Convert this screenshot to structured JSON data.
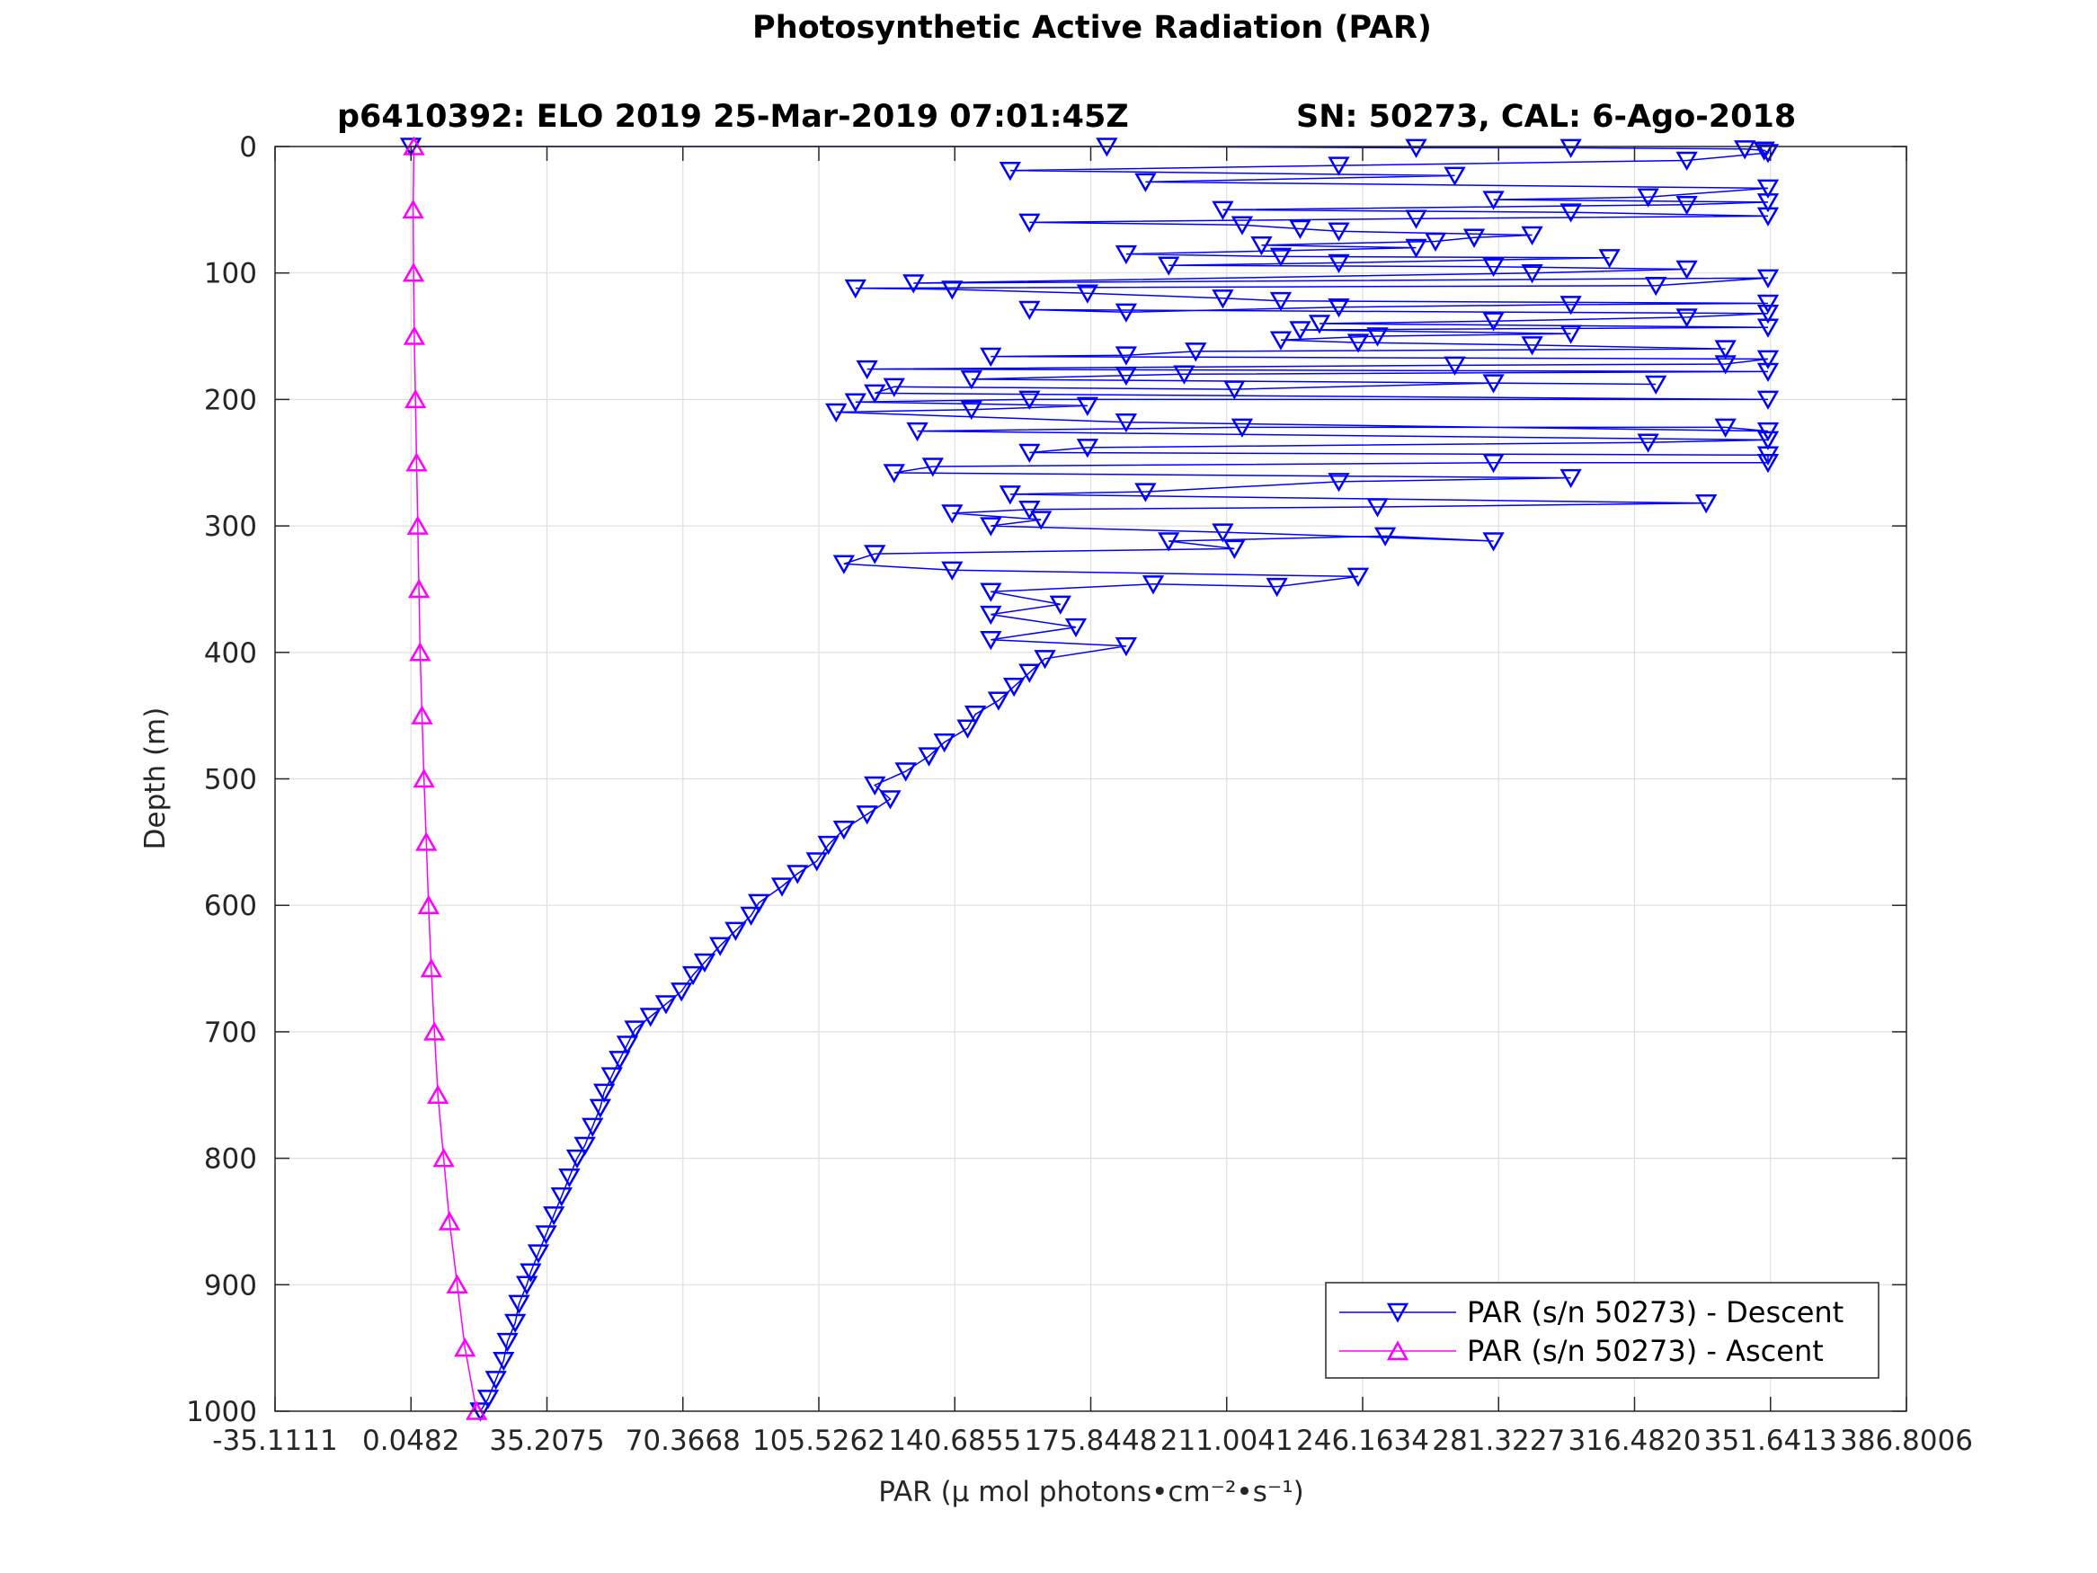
{
  "chart_data": {
    "type": "line",
    "title": "Photosynthetic Active Radiation (PAR)",
    "subtitle_left": "p6410392: ELO 2019 25-Mar-2019 07:01:45Z",
    "subtitle_right": "SN: 50273, CAL: 6-Ago-2018",
    "xlabel": "PAR (μ mol photons•cm⁻²•s⁻¹)",
    "ylabel": "Depth (m)",
    "xlim": [
      -35.1111,
      386.8006
    ],
    "ylim": [
      0,
      1000
    ],
    "y_reversed": true,
    "grid": true,
    "legend_position": "bottom-right",
    "x_ticks": [
      "-35.1111",
      "0.0482",
      "35.2075",
      "70.3668",
      "105.5262",
      "140.6855",
      "175.8448",
      "211.0041",
      "246.1634",
      "281.3227",
      "316.4820",
      "351.6413",
      "386.8006"
    ],
    "x_tick_values": [
      -35.1111,
      0.0482,
      35.2075,
      70.3668,
      105.5262,
      140.6855,
      175.8448,
      211.0041,
      246.1634,
      281.3227,
      316.482,
      351.6413,
      386.8006
    ],
    "y_ticks": [
      "0",
      "100",
      "200",
      "300",
      "400",
      "500",
      "600",
      "700",
      "800",
      "900",
      "1000"
    ],
    "y_tick_values": [
      0,
      100,
      200,
      300,
      400,
      500,
      600,
      700,
      800,
      900,
      1000
    ],
    "series": [
      {
        "name": "PAR (s/n 50273) - Descent",
        "color": "#0000ff",
        "marker": "triangle-down",
        "points": [
          [
            18,
            1000
          ],
          [
            20,
            990
          ],
          [
            22,
            975
          ],
          [
            24,
            960
          ],
          [
            25,
            945
          ],
          [
            27,
            930
          ],
          [
            28,
            915
          ],
          [
            30,
            900
          ],
          [
            31,
            890
          ],
          [
            33,
            875
          ],
          [
            35,
            860
          ],
          [
            37,
            845
          ],
          [
            39,
            830
          ],
          [
            41,
            815
          ],
          [
            43,
            800
          ],
          [
            45,
            790
          ],
          [
            47,
            775
          ],
          [
            49,
            760
          ],
          [
            50,
            748
          ],
          [
            52,
            735
          ],
          [
            54,
            722
          ],
          [
            56,
            710
          ],
          [
            58,
            698
          ],
          [
            62,
            688
          ],
          [
            66,
            678
          ],
          [
            70,
            668
          ],
          [
            73,
            655
          ],
          [
            76,
            645
          ],
          [
            80,
            632
          ],
          [
            84,
            620
          ],
          [
            88,
            608
          ],
          [
            90,
            598
          ],
          [
            96,
            585
          ],
          [
            100,
            575
          ],
          [
            105,
            565
          ],
          [
            108,
            552
          ],
          [
            112,
            540
          ],
          [
            118,
            528
          ],
          [
            124,
            516
          ],
          [
            120,
            505
          ],
          [
            128,
            494
          ],
          [
            134,
            482
          ],
          [
            138,
            471
          ],
          [
            144,
            460
          ],
          [
            146,
            449
          ],
          [
            152,
            438
          ],
          [
            156,
            427
          ],
          [
            160,
            416
          ],
          [
            164,
            405
          ],
          [
            185,
            395
          ],
          [
            150,
            390
          ],
          [
            172,
            380
          ],
          [
            150,
            370
          ],
          [
            168,
            362
          ],
          [
            150,
            352
          ],
          [
            192,
            346
          ],
          [
            224,
            348
          ],
          [
            245,
            340
          ],
          [
            140,
            335
          ],
          [
            112,
            330
          ],
          [
            120,
            322
          ],
          [
            213,
            318
          ],
          [
            196,
            312
          ],
          [
            252,
            308
          ],
          [
            280,
            312
          ],
          [
            210,
            305
          ],
          [
            150,
            300
          ],
          [
            163,
            295
          ],
          [
            140,
            290
          ],
          [
            160,
            287
          ],
          [
            250,
            285
          ],
          [
            335,
            282
          ],
          [
            155,
            275
          ],
          [
            190,
            273
          ],
          [
            240,
            265
          ],
          [
            300,
            262
          ],
          [
            125,
            258
          ],
          [
            135,
            253
          ],
          [
            280,
            250
          ],
          [
            351,
            250
          ],
          [
            351,
            244
          ],
          [
            160,
            242
          ],
          [
            175,
            238
          ],
          [
            320,
            234
          ],
          [
            351,
            232
          ],
          [
            131,
            225
          ],
          [
            215,
            222
          ],
          [
            340,
            222
          ],
          [
            351,
            225
          ],
          [
            185,
            218
          ],
          [
            110,
            210
          ],
          [
            145,
            208
          ],
          [
            175,
            205
          ],
          [
            115,
            202
          ],
          [
            160,
            200
          ],
          [
            351,
            200
          ],
          [
            120,
            195
          ],
          [
            125,
            190
          ],
          [
            213,
            192
          ],
          [
            280,
            187
          ],
          [
            322,
            188
          ],
          [
            145,
            184
          ],
          [
            185,
            181
          ],
          [
            200,
            180
          ],
          [
            351,
            178
          ],
          [
            118,
            176
          ],
          [
            270,
            173
          ],
          [
            340,
            172
          ],
          [
            351,
            168
          ],
          [
            150,
            166
          ],
          [
            185,
            165
          ],
          [
            203,
            162
          ],
          [
            340,
            160
          ],
          [
            290,
            157
          ],
          [
            245,
            155
          ],
          [
            225,
            153
          ],
          [
            250,
            150
          ],
          [
            300,
            148
          ],
          [
            230,
            145
          ],
          [
            351,
            143
          ],
          [
            235,
            140
          ],
          [
            280,
            138
          ],
          [
            330,
            135
          ],
          [
            351,
            132
          ],
          [
            160,
            129
          ],
          [
            185,
            131
          ],
          [
            240,
            127
          ],
          [
            300,
            125
          ],
          [
            351,
            124
          ],
          [
            225,
            122
          ],
          [
            210,
            120
          ],
          [
            175,
            116
          ],
          [
            140,
            113
          ],
          [
            115,
            112
          ],
          [
            322,
            110
          ],
          [
            351,
            104
          ],
          [
            130,
            108
          ],
          [
            290,
            100
          ],
          [
            330,
            97
          ],
          [
            280,
            95
          ],
          [
            196,
            94
          ],
          [
            240,
            92
          ],
          [
            310,
            88
          ],
          [
            225,
            87
          ],
          [
            185,
            85
          ],
          [
            260,
            80
          ],
          [
            220,
            78
          ],
          [
            265,
            75
          ],
          [
            275,
            72
          ],
          [
            290,
            70
          ],
          [
            240,
            67
          ],
          [
            230,
            65
          ],
          [
            215,
            62
          ],
          [
            160,
            60
          ],
          [
            260,
            57
          ],
          [
            351,
            55
          ],
          [
            300,
            52
          ],
          [
            210,
            50
          ],
          [
            330,
            46
          ],
          [
            351,
            44
          ],
          [
            280,
            42
          ],
          [
            320,
            40
          ],
          [
            351,
            33
          ],
          [
            190,
            28
          ],
          [
            270,
            23
          ],
          [
            155,
            19
          ],
          [
            240,
            15
          ],
          [
            330,
            11
          ],
          [
            351,
            5
          ],
          [
            350,
            3
          ],
          [
            345,
            2
          ],
          [
            300,
            1
          ],
          [
            260,
            1
          ],
          [
            180,
            0
          ],
          [
            0,
            0
          ]
        ]
      },
      {
        "name": "PAR (s/n 50273) - Ascent",
        "color": "#ff00ff",
        "marker": "triangle-up",
        "points": [
          [
            0.8,
            0
          ],
          [
            0.6,
            50
          ],
          [
            0.7,
            100
          ],
          [
            0.9,
            150
          ],
          [
            1.2,
            200
          ],
          [
            1.5,
            250
          ],
          [
            1.8,
            300
          ],
          [
            2.1,
            350
          ],
          [
            2.4,
            400
          ],
          [
            2.9,
            450
          ],
          [
            3.4,
            500
          ],
          [
            4.0,
            550
          ],
          [
            4.6,
            600
          ],
          [
            5.3,
            650
          ],
          [
            6.1,
            700
          ],
          [
            7.0,
            750
          ],
          [
            8.5,
            800
          ],
          [
            10,
            850
          ],
          [
            12,
            900
          ],
          [
            14,
            950
          ],
          [
            17,
            1000
          ]
        ]
      }
    ]
  }
}
